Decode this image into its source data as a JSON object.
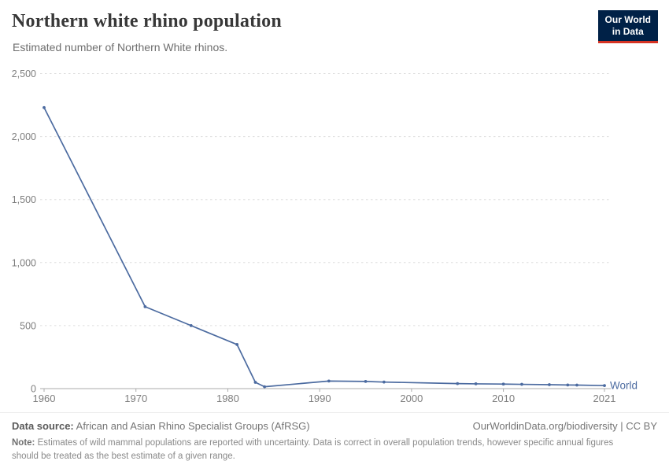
{
  "header": {
    "title": "Northern white rhino population",
    "subtitle": "Estimated number of Northern White rhinos.",
    "logo_line1": "Our World",
    "logo_line2": "in Data"
  },
  "chart_data": {
    "type": "line",
    "title": "Northern white rhino population",
    "subtitle": "Estimated number of Northern White rhinos.",
    "xlabel": "",
    "ylabel": "",
    "xlim": [
      1960,
      2021
    ],
    "ylim": [
      0,
      2500
    ],
    "xticks": [
      1960,
      1970,
      1980,
      1990,
      2000,
      2010,
      2021
    ],
    "xtick_labels": [
      "1960",
      "1970",
      "1980",
      "1990",
      "2000",
      "2010",
      "2021"
    ],
    "yticks": [
      0,
      500,
      1000,
      1500,
      2000,
      2500
    ],
    "ytick_labels": [
      "0",
      "500",
      "1,000",
      "1,500",
      "2,000",
      "2,500"
    ],
    "grid": "horizontal-dashed",
    "legend_position": "end-of-line-label",
    "series": [
      {
        "name": "World",
        "x": [
          1960,
          1971,
          1976,
          1981,
          1983,
          1984,
          1991,
          1995,
          1997,
          2005,
          2007,
          2010,
          2012,
          2015,
          2017,
          2018,
          2021
        ],
        "values": [
          2230,
          650,
          500,
          350,
          50,
          15,
          60,
          57,
          52,
          40,
          38,
          36,
          34,
          31,
          29,
          28,
          24
        ]
      }
    ]
  },
  "footer": {
    "datasource_label": "Data source:",
    "datasource_text": " African and Asian Rhino Specialist Groups (AfRSG)",
    "license_text": "OurWorldinData.org/biodiversity | CC BY",
    "note_label": "Note:",
    "note_text": " Estimates of wild mammal populations are reported with uncertainty. Data is correct in overall population trends, however specific annual figures should be treated as the best estimate of a given range."
  },
  "colors": {
    "line": "#4c6ba0",
    "end_label": "#4c6ba0",
    "logo_bg": "#002147",
    "logo_accent": "#d63323",
    "gridline": "#dedede",
    "axis": "#ababab"
  }
}
